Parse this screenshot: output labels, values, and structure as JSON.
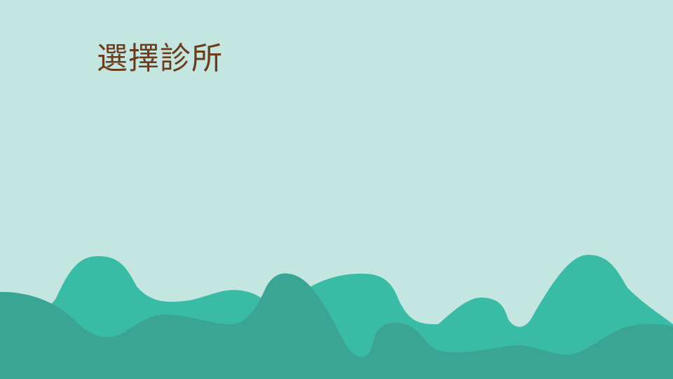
{
  "slide": {
    "title": "選擇診所"
  },
  "colors": {
    "background": "#c3e6e0",
    "title_text": "#6b3d1f",
    "hill_light": "#3abba5",
    "hill_dark": "#3aa595"
  },
  "decoration": {
    "name": "rolling-hills-illustration"
  }
}
